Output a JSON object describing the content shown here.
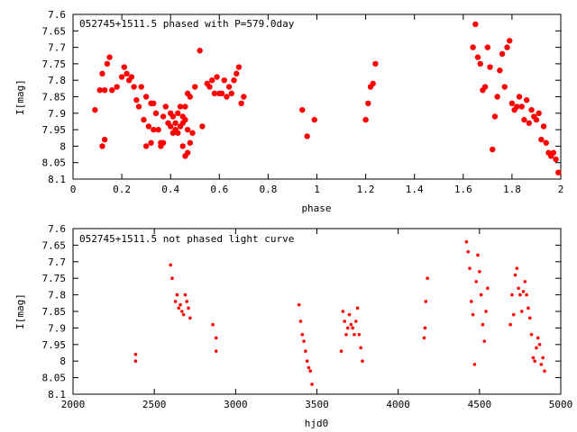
{
  "chart_data": [
    {
      "type": "scatter",
      "title": "052745+1511.5 phased with P=579.0day",
      "xlabel": "phase",
      "ylabel": "I[mag]",
      "xlim": [
        0,
        2
      ],
      "ylim": [
        8.1,
        7.6
      ],
      "y_inverted": true,
      "x_ticks": [
        "0",
        "0.2",
        "0.4",
        "0.6",
        "0.8",
        "1",
        "1.2",
        "1.4",
        "1.6",
        "1.8",
        "2"
      ],
      "x_tick_values": [
        0,
        0.2,
        0.4,
        0.6,
        0.8,
        1.0,
        1.2,
        1.4,
        1.6,
        1.8,
        2.0
      ],
      "y_ticks": [
        "7.6",
        "7.65",
        "7.7",
        "7.75",
        "7.8",
        "7.85",
        "7.9",
        "7.95",
        "8",
        "8.05",
        "8.1"
      ],
      "y_tick_values": [
        7.6,
        7.65,
        7.7,
        7.75,
        7.8,
        7.85,
        7.9,
        7.95,
        8.0,
        8.05,
        8.1
      ],
      "grid": false,
      "marker_color": "#ff0000",
      "x": [
        0.09,
        0.11,
        0.12,
        0.12,
        0.13,
        0.13,
        0.14,
        0.15,
        0.16,
        0.18,
        0.2,
        0.21,
        0.22,
        0.23,
        0.24,
        0.25,
        0.26,
        0.27,
        0.28,
        0.29,
        0.3,
        0.3,
        0.31,
        0.32,
        0.32,
        0.33,
        0.33,
        0.34,
        0.35,
        0.36,
        0.36,
        0.37,
        0.37,
        0.38,
        0.39,
        0.4,
        0.4,
        0.41,
        0.41,
        0.42,
        0.42,
        0.43,
        0.43,
        0.44,
        0.44,
        0.45,
        0.45,
        0.45,
        0.46,
        0.46,
        0.46,
        0.47,
        0.47,
        0.47,
        0.48,
        0.48,
        0.49,
        0.5,
        0.52,
        0.53,
        0.55,
        0.56,
        0.57,
        0.58,
        0.59,
        0.6,
        0.61,
        0.62,
        0.63,
        0.64,
        0.65,
        0.66,
        0.67,
        0.68,
        0.69,
        0.7,
        0.94,
        0.96,
        0.99,
        1.2,
        1.21,
        1.22,
        1.23,
        1.24,
        1.64,
        1.65,
        1.66,
        1.67,
        1.68,
        1.69,
        1.7,
        1.71,
        1.72,
        1.73,
        1.74,
        1.75,
        1.76,
        1.77,
        1.78,
        1.79,
        1.8,
        1.81,
        1.82,
        1.83,
        1.84,
        1.85,
        1.86,
        1.87,
        1.88,
        1.89,
        1.9,
        1.91,
        1.92,
        1.93,
        1.94,
        1.95,
        1.96,
        1.97,
        1.98,
        1.99
      ],
      "y": [
        7.89,
        7.83,
        8.0,
        7.78,
        7.98,
        7.83,
        7.75,
        7.73,
        7.83,
        7.82,
        7.79,
        7.76,
        7.78,
        7.8,
        7.79,
        7.82,
        7.86,
        7.88,
        7.82,
        7.92,
        8.0,
        7.85,
        7.94,
        7.99,
        7.87,
        7.95,
        7.87,
        7.9,
        7.95,
        7.99,
        8.0,
        7.91,
        7.99,
        7.88,
        7.93,
        7.94,
        7.9,
        7.96,
        7.91,
        7.95,
        7.93,
        7.9,
        7.96,
        7.88,
        7.94,
        7.91,
        8.0,
        7.93,
        8.03,
        7.92,
        7.88,
        7.84,
        8.02,
        7.95,
        7.85,
        7.99,
        7.96,
        7.82,
        7.71,
        7.94,
        7.81,
        7.82,
        7.8,
        7.84,
        7.79,
        7.84,
        7.84,
        7.8,
        7.85,
        7.82,
        7.84,
        7.8,
        7.78,
        7.76,
        7.87,
        7.85,
        7.89,
        7.97,
        7.92,
        7.92,
        7.87,
        7.82,
        7.81,
        7.75,
        7.7,
        7.63,
        7.73,
        7.75,
        7.83,
        7.82,
        7.7,
        7.76,
        8.01,
        7.91,
        7.85,
        7.77,
        7.72,
        7.82,
        7.7,
        7.68,
        7.87,
        7.89,
        7.88,
        7.85,
        7.88,
        7.92,
        7.86,
        7.93,
        7.89,
        7.91,
        7.92,
        7.9,
        7.98,
        7.94,
        7.99,
        8.02,
        8.03,
        8.02,
        8.04,
        8.08
      ]
    },
    {
      "type": "scatter",
      "title": "052745+1511.5 not phased light curve",
      "xlabel": "hjd0",
      "ylabel": "I[mag]",
      "xlim": [
        2000,
        5000
      ],
      "ylim": [
        8.1,
        7.6
      ],
      "y_inverted": true,
      "x_ticks": [
        "2000",
        "2500",
        "3000",
        "3500",
        "4000",
        "4500",
        "5000"
      ],
      "x_tick_values": [
        2000,
        2500,
        3000,
        3500,
        4000,
        4500,
        5000
      ],
      "y_ticks": [
        "7.6",
        "7.65",
        "7.7",
        "7.75",
        "7.8",
        "7.85",
        "7.9",
        "7.95",
        "8",
        "8.05",
        "8.1"
      ],
      "y_tick_values": [
        7.6,
        7.65,
        7.7,
        7.75,
        7.8,
        7.85,
        7.9,
        7.95,
        8.0,
        8.05,
        8.1
      ],
      "grid": false,
      "marker_color": "#ff0000",
      "x": [
        2385,
        2385,
        2600,
        2610,
        2630,
        2640,
        2650,
        2660,
        2670,
        2680,
        2690,
        2700,
        2710,
        2720,
        2860,
        2880,
        2880,
        3390,
        3400,
        3410,
        3420,
        3430,
        3440,
        3450,
        3460,
        3470,
        3650,
        3660,
        3670,
        3680,
        3690,
        3700,
        3710,
        3720,
        3730,
        3740,
        3750,
        3760,
        3770,
        3780,
        4160,
        4165,
        4170,
        4180,
        4420,
        4430,
        4440,
        4450,
        4460,
        4470,
        4480,
        4490,
        4500,
        4510,
        4520,
        4530,
        4540,
        4550,
        4690,
        4700,
        4710,
        4720,
        4730,
        4740,
        4750,
        4760,
        4770,
        4780,
        4790,
        4800,
        4810,
        4820,
        4830,
        4840,
        4850,
        4860,
        4870,
        4880,
        4890,
        4900
      ],
      "y": [
        7.98,
        8.0,
        7.71,
        7.75,
        7.82,
        7.8,
        7.84,
        7.83,
        7.85,
        7.86,
        7.8,
        7.82,
        7.84,
        7.87,
        7.89,
        7.97,
        7.93,
        7.83,
        7.88,
        7.92,
        7.94,
        7.97,
        8.0,
        8.02,
        8.03,
        8.07,
        7.97,
        7.85,
        7.88,
        7.92,
        7.9,
        7.86,
        7.89,
        7.9,
        7.92,
        7.88,
        7.84,
        7.92,
        7.96,
        8.0,
        7.93,
        7.9,
        7.82,
        7.75,
        7.64,
        7.67,
        7.72,
        7.82,
        7.86,
        8.01,
        7.76,
        7.68,
        7.73,
        7.8,
        7.89,
        7.94,
        7.85,
        7.78,
        7.89,
        7.8,
        7.86,
        7.74,
        7.72,
        7.78,
        7.8,
        7.85,
        7.79,
        7.76,
        7.8,
        7.84,
        7.87,
        7.92,
        7.99,
        8.0,
        7.96,
        7.93,
        7.95,
        8.01,
        7.99,
        8.03
      ]
    }
  ]
}
